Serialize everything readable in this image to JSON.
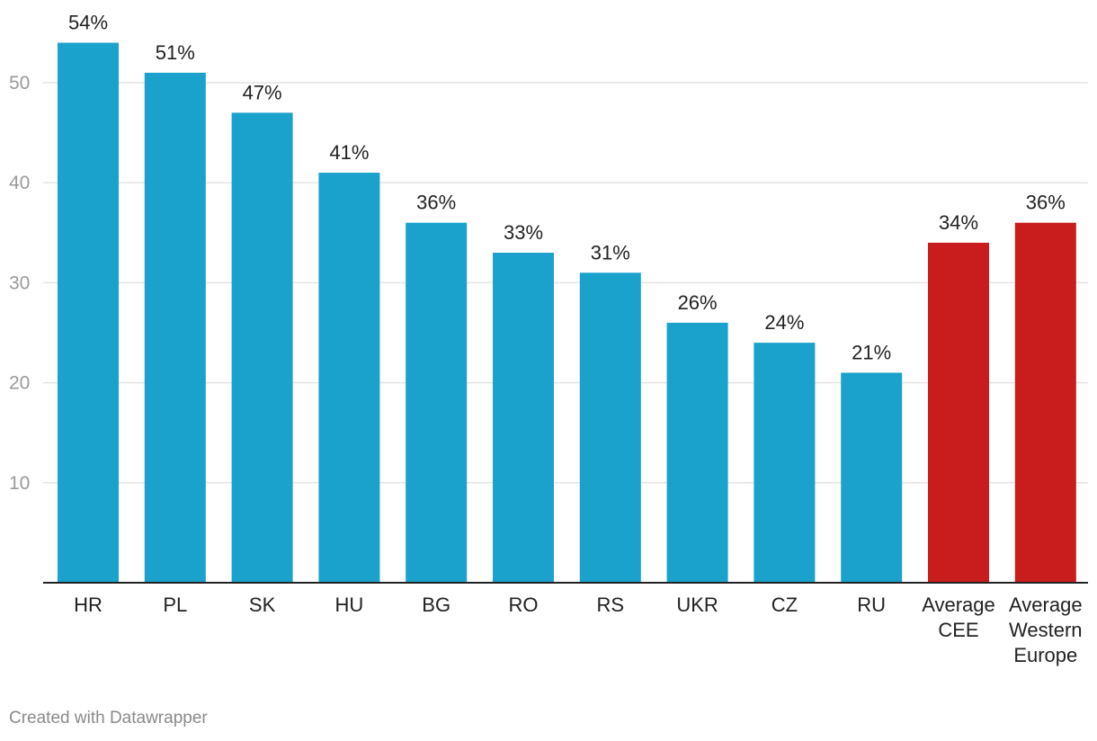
{
  "chart_data": {
    "type": "bar",
    "categories": [
      [
        "HR"
      ],
      [
        "PL"
      ],
      [
        "SK"
      ],
      [
        "HU"
      ],
      [
        "BG"
      ],
      [
        "RO"
      ],
      [
        "RS"
      ],
      [
        "UKR"
      ],
      [
        "CZ"
      ],
      [
        "RU"
      ],
      [
        "Average",
        "CEE"
      ],
      [
        "Average",
        "Western",
        "Europe"
      ]
    ],
    "values": [
      54,
      51,
      47,
      41,
      36,
      33,
      31,
      26,
      24,
      21,
      34,
      36
    ],
    "value_labels": [
      "54%",
      "51%",
      "47%",
      "41%",
      "36%",
      "33%",
      "31%",
      "26%",
      "24%",
      "21%",
      "34%",
      "36%"
    ],
    "bar_colors": [
      "#1aa1cc",
      "#1aa1cc",
      "#1aa1cc",
      "#1aa1cc",
      "#1aa1cc",
      "#1aa1cc",
      "#1aa1cc",
      "#1aa1cc",
      "#1aa1cc",
      "#1aa1cc",
      "#c91c1c",
      "#c91c1c"
    ],
    "yticks": [
      10,
      20,
      30,
      40,
      50
    ],
    "ylim": [
      0,
      54
    ],
    "grid": true,
    "colors": {
      "primary": "#1aa1cc",
      "highlight": "#c91c1c",
      "grid": "#e4e4e4",
      "axis": "#222222"
    }
  },
  "footer": {
    "credit": "Created with Datawrapper"
  }
}
